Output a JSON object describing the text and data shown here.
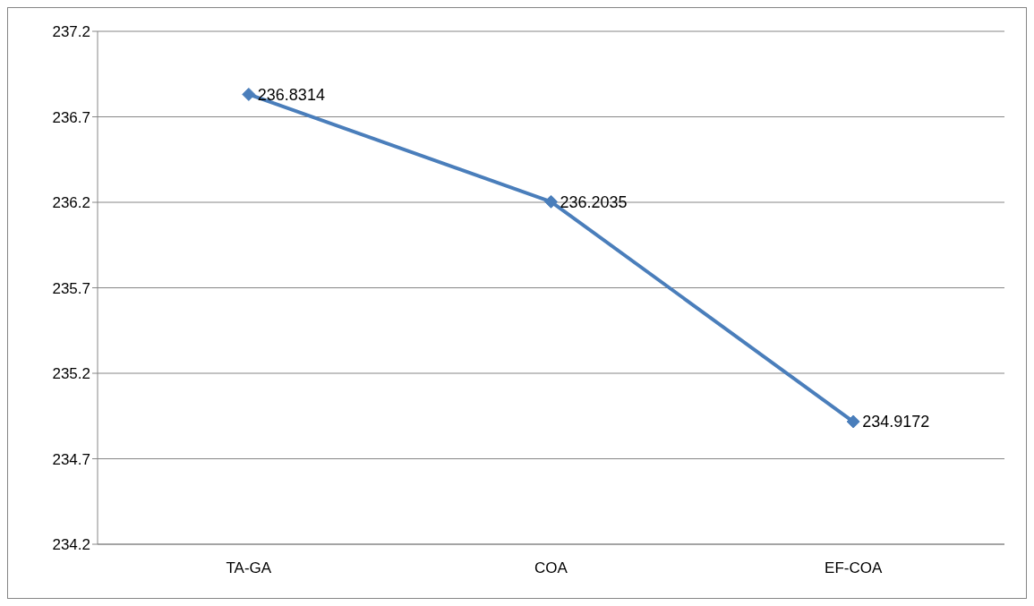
{
  "chart_data": {
    "type": "line",
    "categories": [
      "TA-GA",
      "COA",
      "EF-COA"
    ],
    "series": [
      {
        "color": "#4a7ebb",
        "values": [
          236.8314,
          236.2035,
          234.9172
        ]
      }
    ],
    "ylim": [
      234.2,
      237.2
    ],
    "yticks": [
      234.2,
      234.7,
      235.2,
      235.7,
      236.2,
      236.7,
      237.2
    ],
    "grid": "y",
    "marker": "diamond",
    "line_style": "solid",
    "data_labels": true
  }
}
